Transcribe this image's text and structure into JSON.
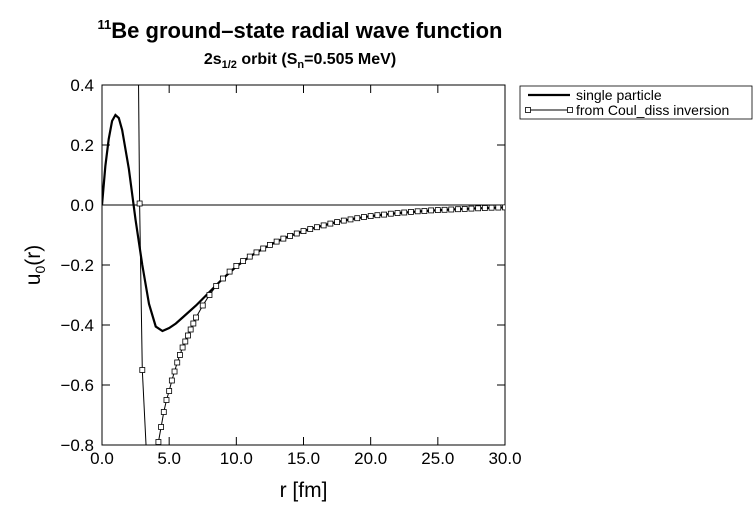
{
  "chart_data": {
    "type": "line",
    "title": [
      "11",
      "Be ground–state radial wave function"
    ],
    "subtitle": [
      "2s",
      "1/2",
      " orbit  (S",
      "n",
      "=0.505 MeV)"
    ],
    "x_label": "r  [fm]",
    "y_label": [
      "u",
      "0",
      "(r)"
    ],
    "xlim": [
      0,
      30
    ],
    "ylim": [
      -0.8,
      0.4
    ],
    "xticks": [
      {
        "value": 0,
        "label": "0.0"
      },
      {
        "value": 5,
        "label": "5.0"
      },
      {
        "value": 10,
        "label": "10.0"
      },
      {
        "value": 15,
        "label": "15.0"
      },
      {
        "value": 20,
        "label": "20.0"
      },
      {
        "value": 25,
        "label": "25.0"
      },
      {
        "value": 30,
        "label": "30.0"
      }
    ],
    "yticks": [
      {
        "value": -0.8,
        "label": "−0.8"
      },
      {
        "value": -0.6,
        "label": "−0.6"
      },
      {
        "value": -0.4,
        "label": "−0.4"
      },
      {
        "value": -0.2,
        "label": "−0.2"
      },
      {
        "value": 0,
        "label": "0.0"
      },
      {
        "value": 0.2,
        "label": "0.2"
      },
      {
        "value": 0.4,
        "label": "0.4"
      }
    ],
    "legend_position": "right",
    "series": [
      {
        "name": "single particle",
        "color": "#000000",
        "marker": "none",
        "x": [
          0,
          0.25,
          0.5,
          0.75,
          1,
          1.25,
          1.5,
          2,
          2.5,
          3,
          3.5,
          4,
          4.5,
          5,
          5.5,
          6,
          7,
          8,
          9,
          10,
          11,
          12,
          13,
          14,
          15,
          16,
          17,
          18,
          19,
          20,
          22,
          24,
          26,
          28,
          30
        ],
        "values": [
          0,
          0.13,
          0.22,
          0.28,
          0.3,
          0.29,
          0.25,
          0.12,
          -0.05,
          -0.2,
          -0.33,
          -0.405,
          -0.42,
          -0.41,
          -0.395,
          -0.375,
          -0.335,
          -0.29,
          -0.245,
          -0.205,
          -0.172,
          -0.145,
          -0.122,
          -0.103,
          -0.087,
          -0.074,
          -0.062,
          -0.052,
          -0.044,
          -0.037,
          -0.027,
          -0.02,
          -0.015,
          -0.011,
          -0.008
        ]
      },
      {
        "name": "from Coul_diss inversion",
        "color": "#000000",
        "marker": "square",
        "x": [
          2.6,
          2.8,
          3.0,
          3.5,
          4.0,
          4.2,
          4.4,
          4.6,
          4.8,
          5.0,
          5.2,
          5.4,
          5.6,
          5.8,
          6.0,
          6.2,
          6.4,
          6.6,
          6.8,
          7.0,
          7.5,
          8.0,
          8.5,
          9.0,
          9.5,
          10,
          10.5,
          11,
          11.5,
          12,
          12.5,
          13,
          13.5,
          14,
          14.5,
          15,
          15.5,
          16,
          16.5,
          17,
          17.5,
          18,
          18.5,
          19,
          19.5,
          20,
          20.5,
          21,
          21.5,
          22,
          22.5,
          23,
          23.5,
          24,
          24.5,
          25,
          25.5,
          26,
          26.5,
          27,
          27.5,
          28,
          28.5,
          29,
          29.5,
          30
        ],
        "values": [
          1.0,
          0.005,
          -0.55,
          -1.0,
          -0.9,
          -0.79,
          -0.74,
          -0.69,
          -0.65,
          -0.62,
          -0.585,
          -0.555,
          -0.525,
          -0.5,
          -0.475,
          -0.455,
          -0.435,
          -0.415,
          -0.395,
          -0.375,
          -0.335,
          -0.3,
          -0.27,
          -0.245,
          -0.222,
          -0.203,
          -0.187,
          -0.172,
          -0.158,
          -0.145,
          -0.133,
          -0.122,
          -0.112,
          -0.103,
          -0.095,
          -0.087,
          -0.08,
          -0.074,
          -0.068,
          -0.062,
          -0.057,
          -0.052,
          -0.048,
          -0.044,
          -0.04,
          -0.037,
          -0.034,
          -0.032,
          -0.029,
          -0.027,
          -0.025,
          -0.023,
          -0.021,
          -0.02,
          -0.018,
          -0.017,
          -0.016,
          -0.015,
          -0.014,
          -0.013,
          -0.012,
          -0.011,
          -0.01,
          -0.009,
          -0.0085,
          -0.008
        ]
      }
    ]
  }
}
